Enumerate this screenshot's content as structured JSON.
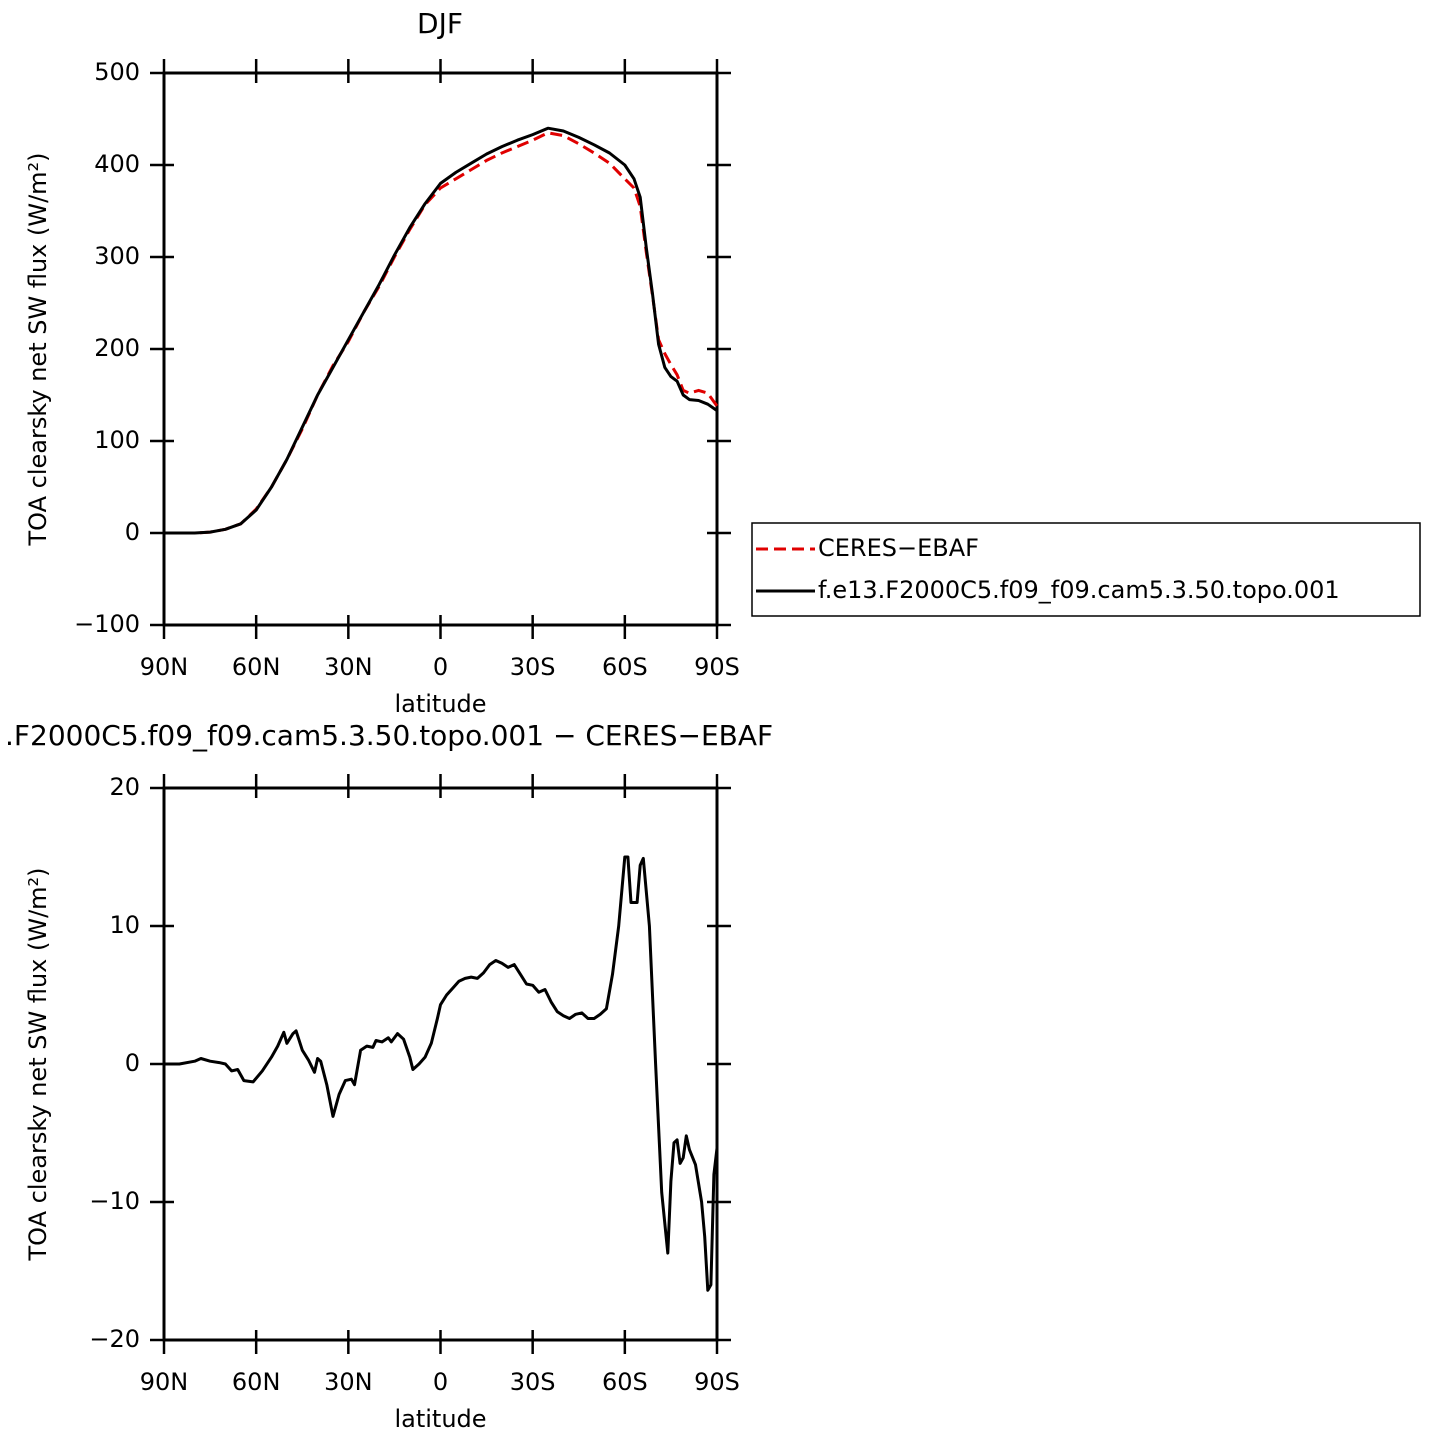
{
  "chart_data": [
    {
      "type": "line",
      "title": "DJF",
      "xlabel": "latitude",
      "ylabel": "TOA clearsky net SW flux (W/m²)",
      "x": [
        90,
        85,
        80,
        75,
        70,
        65,
        60,
        55,
        50,
        45,
        40,
        35,
        30,
        25,
        20,
        15,
        10,
        5,
        0,
        -5,
        -10,
        -15,
        -20,
        -25,
        -30,
        -35,
        -40,
        -45,
        -50,
        -55,
        -60,
        -63,
        -65,
        -67,
        -69,
        -71,
        -73,
        -75,
        -77,
        -79,
        -81,
        -84,
        -87,
        -90
      ],
      "series": [
        {
          "name": "CERES−EBAF",
          "color": "#e00000",
          "dash": true,
          "values": [
            0,
            0,
            0,
            1,
            4,
            10,
            26,
            50,
            80,
            113,
            150,
            182,
            208,
            240,
            268,
            300,
            330,
            357,
            375,
            385,
            395,
            405,
            413,
            420,
            427,
            435,
            432,
            423,
            413,
            402,
            385,
            375,
            355,
            305,
            258,
            210,
            195,
            183,
            172,
            155,
            152,
            155,
            152,
            138
          ]
        },
        {
          "name": "f.e13.F2000C5.f09_f09.cam5.3.50.topo.001",
          "color": "#000000",
          "dash": false,
          "values": [
            0,
            0,
            0,
            1,
            4,
            10,
            25,
            50,
            80,
            115,
            150,
            180,
            210,
            240,
            270,
            302,
            332,
            358,
            380,
            392,
            402,
            412,
            420,
            427,
            433,
            440,
            437,
            430,
            422,
            413,
            400,
            385,
            365,
            310,
            260,
            205,
            180,
            170,
            165,
            150,
            145,
            144,
            140,
            133
          ]
        }
      ],
      "xlim": [
        90,
        -90
      ],
      "ylim": [
        -100,
        500
      ],
      "xticks": [
        {
          "value": 90,
          "label": "90N"
        },
        {
          "value": 60,
          "label": "60N"
        },
        {
          "value": 30,
          "label": "30N"
        },
        0,
        {
          "value": -30,
          "label": "30S"
        },
        {
          "value": -60,
          "label": "60S"
        },
        {
          "value": -90,
          "label": "90S"
        }
      ],
      "yticks": [
        {
          "value": -100,
          "label": "−100"
        },
        0,
        100,
        200,
        300,
        400,
        500
      ],
      "legend": "right"
    },
    {
      "type": "line",
      "title": ".F2000C5.f09_f09.cam5.3.50.topo.001 − CERES−EBAF",
      "xlabel": "latitude",
      "ylabel": "TOA clearsky net SW flux (W/m²)",
      "x": [
        90,
        85,
        80,
        78,
        75,
        72,
        70,
        68,
        66,
        64,
        61,
        58,
        55,
        53,
        51,
        50,
        48,
        47,
        45,
        43,
        41,
        40,
        39,
        37,
        35,
        33,
        31,
        29,
        28,
        26,
        24,
        22,
        21,
        19,
        17,
        16,
        14,
        12,
        10,
        9,
        7,
        5,
        3,
        1,
        0,
        -2,
        -4,
        -6,
        -8,
        -10,
        -12,
        -14,
        -16,
        -18,
        -20,
        -22,
        -24,
        -26,
        -28,
        -30,
        -32,
        -34,
        -36,
        -38,
        -40,
        -42,
        -44,
        -46,
        -48,
        -50,
        -52,
        -54,
        -56,
        -58,
        -60,
        -61,
        -62,
        -64,
        -65,
        -66,
        -68,
        -70,
        -72,
        -74,
        -75,
        -76,
        -77,
        -78,
        -79,
        -80,
        -81,
        -83,
        -85,
        -86,
        -87,
        -88,
        -89,
        -90
      ],
      "color": "#000000",
      "values": [
        0,
        0,
        0.2,
        0.4,
        0.2,
        0.1,
        0,
        -0.5,
        -0.4,
        -1.2,
        -1.3,
        -0.5,
        0.5,
        1.3,
        2.3,
        1.5,
        2.2,
        2.4,
        1.0,
        0.3,
        -0.6,
        0.4,
        0.2,
        -1.5,
        -3.8,
        -2.2,
        -1.2,
        -1.1,
        -1.5,
        1.0,
        1.3,
        1.2,
        1.7,
        1.6,
        1.9,
        1.6,
        2.2,
        1.8,
        0.5,
        -0.4,
        0,
        0.5,
        1.5,
        3.3,
        4.3,
        5.0,
        5.5,
        6.0,
        6.2,
        6.3,
        6.2,
        6.6,
        7.2,
        7.5,
        7.3,
        7.0,
        7.2,
        6.5,
        5.8,
        5.7,
        5.2,
        5.4,
        4.5,
        3.8,
        3.5,
        3.3,
        3.6,
        3.7,
        3.3,
        3.3,
        3.6,
        4.0,
        6.5,
        10.0,
        15.0,
        15.0,
        11.7,
        11.7,
        14.4,
        14.9,
        10.0,
        0,
        -9.3,
        -13.7,
        -8.5,
        -5.7,
        -5.5,
        -7.2,
        -6.8,
        -5.2,
        -6.2,
        -7.3,
        -10.0,
        -12.5,
        -16.4,
        -16.0,
        -8.0,
        -6.1
      ],
      "xlim": [
        90,
        -90
      ],
      "ylim": [
        -20,
        20
      ],
      "xticks": [
        {
          "value": 90,
          "label": "90N"
        },
        {
          "value": 60,
          "label": "60N"
        },
        {
          "value": 30,
          "label": "30N"
        },
        0,
        {
          "value": -30,
          "label": "30S"
        },
        {
          "value": -60,
          "label": "60S"
        },
        {
          "value": -90,
          "label": "90S"
        }
      ],
      "yticks": [
        {
          "value": -20,
          "label": "−20"
        },
        {
          "value": -10,
          "label": "−10"
        },
        0,
        10,
        20
      ]
    }
  ]
}
